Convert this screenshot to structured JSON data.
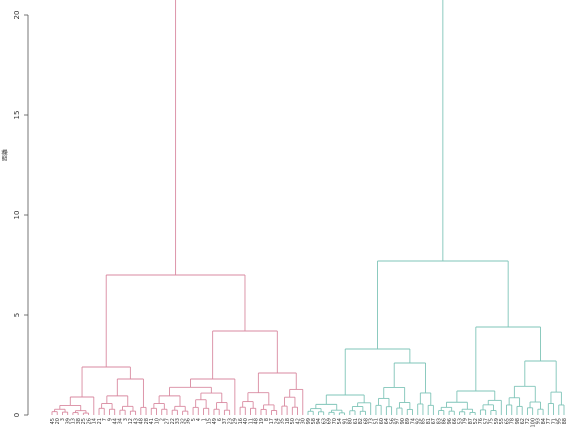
{
  "chart_data": {
    "type": "dendrogram",
    "title": "",
    "ylabel": "距離",
    "ylim": [
      0,
      20
    ],
    "yticks": [
      0,
      5,
      10,
      15,
      20
    ],
    "colors": {
      "cluster_1": "#d98aa0",
      "cluster_2": "#7fc4b8"
    },
    "clusters": [
      {
        "name": "",
        "color_key": "cluster_1",
        "root_height": 21,
        "split_height": 7.0,
        "children": [
          {
            "split_height": 2.4,
            "children": [
              {
                "split_height": 0.9,
                "leaves": [
                  "45",
                  "20",
                  "3",
                  "39",
                  "13",
                  "38",
                  "25",
                  "26",
                  "14"
                ]
              },
              {
                "split_height": 1.8,
                "leaves": [
                  "21",
                  "7",
                  "9",
                  "44",
                  "34",
                  "3",
                  "12",
                  "43",
                  "48",
                  "28"
                ]
              }
            ]
          },
          {
            "split_height": 4.2,
            "children": [
              {
                "split_height": 1.8,
                "leaves": [
                  "41",
                  "10",
                  "2",
                  "27",
                  "22",
                  "33",
                  "32",
                  "36",
                  "5",
                  "4",
                  "1",
                  "15",
                  "49",
                  "6",
                  "37",
                  "23",
                  "29"
                ]
              },
              {
                "split_height": 2.1,
                "leaves": [
                  "16",
                  "40",
                  "11",
                  "48",
                  "19",
                  "8",
                  "17",
                  "24",
                  "35",
                  "18",
                  "50",
                  "42",
                  "30"
                ]
              }
            ]
          }
        ]
      },
      {
        "name": "",
        "color_key": "cluster_2",
        "root_height": 21,
        "split_height": 7.7,
        "children": [
          {
            "split_height": 3.3,
            "children": [
              {
                "split_height": 1.0,
                "leaves": [
                  "99",
                  "58",
                  "94",
                  "63",
                  "69",
                  "70",
                  "54",
                  "91",
                  "80",
                  "61",
                  "82",
                  "68",
                  "73"
                ]
              },
              {
                "split_height": 2.6,
                "leaves": [
                  "51",
                  "60",
                  "64",
                  "56",
                  "97",
                  "90",
                  "89",
                  "74",
                  "92",
                  "85",
                  "81",
                  "67"
                ]
              }
            ]
          },
          {
            "split_height": 4.4,
            "children": [
              {
                "split_height": 1.2,
                "leaves": [
                  "83",
                  "86",
                  "96",
                  "66",
                  "53",
                  "79",
                  "87",
                  "52",
                  "76",
                  "57",
                  "75",
                  "59",
                  "55"
                ]
              },
              {
                "split_height": 2.7,
                "leaves": [
                  "65",
                  "78",
                  "98",
                  "62",
                  "72",
                  "100",
                  "93",
                  "84",
                  "77",
                  "71",
                  "95",
                  "88"
                ]
              }
            ]
          }
        ]
      }
    ]
  }
}
